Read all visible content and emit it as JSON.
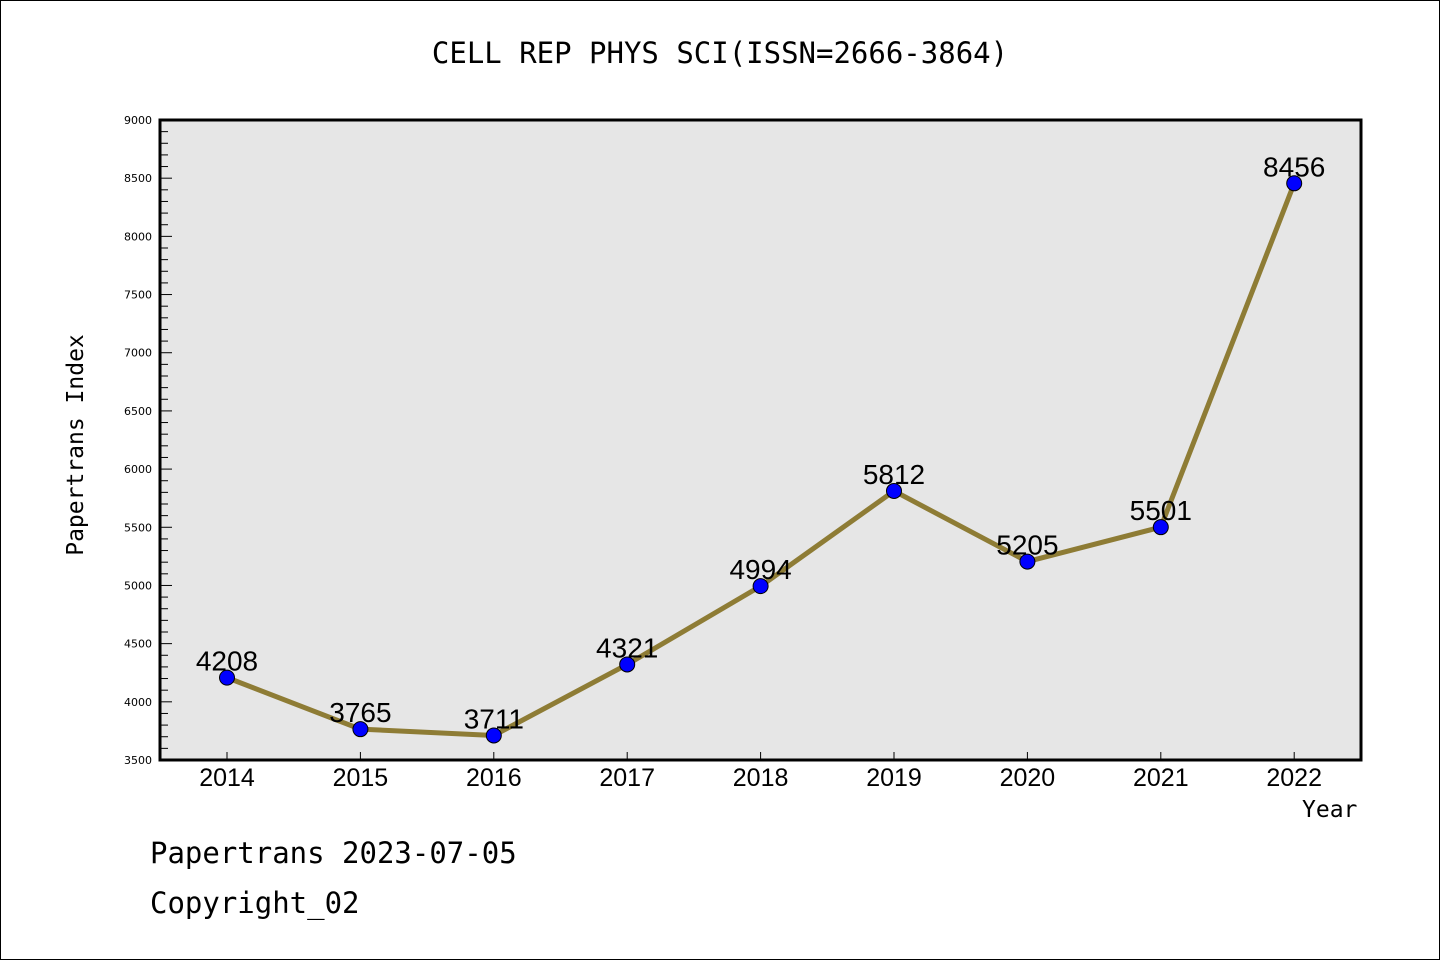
{
  "chart_data": {
    "type": "line",
    "title": "CELL REP PHYS SCI(ISSN=2666-3864)",
    "xlabel": "Year",
    "ylabel": "Papertrans Index",
    "categories": [
      "2014",
      "2015",
      "2016",
      "2017",
      "2018",
      "2019",
      "2020",
      "2021",
      "2022"
    ],
    "series": [
      {
        "name": "Papertrans Index",
        "values": [
          4208,
          3765,
          3711,
          4321,
          4994,
          5812,
          5205,
          5501,
          8456
        ]
      }
    ],
    "ylim": [
      3500,
      9000
    ],
    "yticks": [
      "3500",
      "4000",
      "4500",
      "5000",
      "5500",
      "6000",
      "6500",
      "7000",
      "7500",
      "8000",
      "8500",
      "9000"
    ],
    "grid": false,
    "colors": {
      "line": "#8e7c35",
      "marker": "#0000ff",
      "plot_bg": "#e6e6e6"
    }
  },
  "footer": {
    "line1": "Papertrans 2023-07-05",
    "line2": "Copyright_02"
  }
}
